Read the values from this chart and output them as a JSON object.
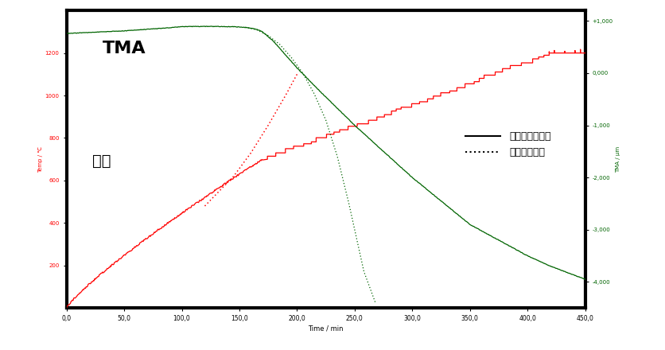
{
  "xlabel": "Time / min",
  "ylabel_left": "Temp / ℃",
  "ylabel_right": "TMA / μm",
  "xlim": [
    0,
    450
  ],
  "ylim_left": [
    0,
    1400
  ],
  "ylim_right": [
    -4500,
    1200
  ],
  "xticks": [
    0,
    50,
    100,
    150,
    200,
    250,
    300,
    350,
    400,
    450
  ],
  "yticks_left": [
    200,
    400,
    600,
    800,
    1000,
    1200
  ],
  "yticks_right": [
    1000,
    0,
    -1000,
    -2000,
    -3000,
    -4000
  ],
  "legend_solid": "収縮率一定測定",
  "legend_dotted": "定速異温測定",
  "label_TMA": "TMA",
  "label_temp": "温度",
  "background_color": "#ffffff",
  "temp_color": "#ff0000",
  "tma_color": "#006400",
  "axis_color": "#000000",
  "figure_width": 8.36,
  "figure_height": 4.4,
  "dpi": 100
}
